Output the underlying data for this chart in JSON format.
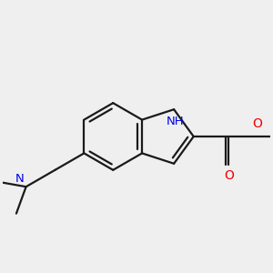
{
  "bg_color": "#efefef",
  "bond_color": "#1a1a1a",
  "N_color": "#0000ee",
  "O_color": "#ee0000",
  "line_width": 1.6,
  "font_size": 9.5,
  "fig_size": [
    3.0,
    3.0
  ],
  "dpi": 100,
  "xlim": [
    -3.8,
    4.2
  ],
  "ylim": [
    -3.0,
    3.0
  ]
}
